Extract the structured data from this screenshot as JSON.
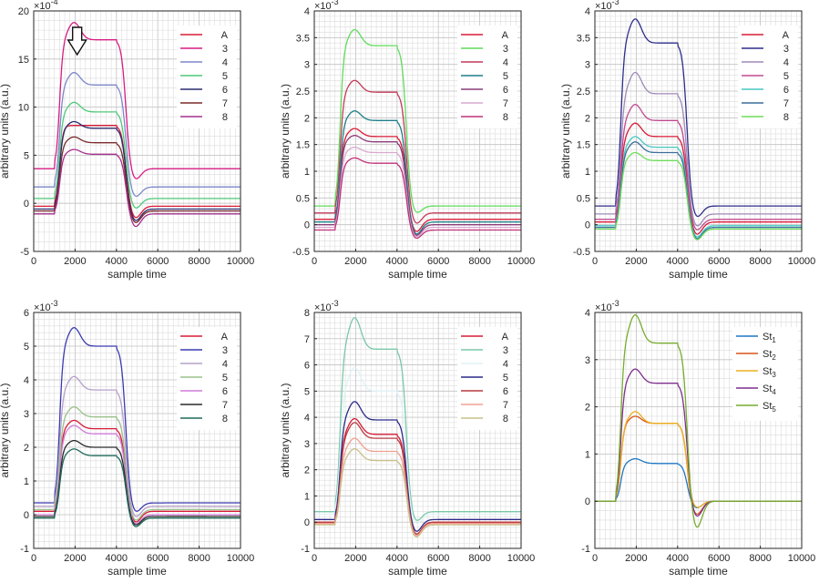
{
  "chart_data": [
    {
      "type": "line",
      "ylabel": "arbitrary units (a.u.)",
      "xlabel": "sample time",
      "exponent": "×10",
      "exponent_power": "-4",
      "xlim": [
        0,
        10000
      ],
      "ylim": [
        -5,
        20
      ],
      "xticks": [
        "0",
        "2000",
        "4000",
        "6000",
        "8000",
        "10000"
      ],
      "yticks": [
        "-5",
        "0",
        "5",
        "10",
        "15",
        "20"
      ],
      "annotation": "down-arrow",
      "legend": [
        "A",
        "3",
        "4",
        "5",
        "6",
        "7",
        "8"
      ],
      "colors": [
        "#d81b36",
        "#d61c83",
        "#7b88c9",
        "#4fc979",
        "#2b2b6e",
        "#7c2a2c",
        "#a4308d"
      ],
      "series": [
        {
          "name": "A",
          "base": -0.3,
          "plateau": 8.1,
          "peak": 0,
          "under": -1.6
        },
        {
          "name": "3",
          "base": 3.6,
          "plateau": 17.0,
          "peak": 1.8,
          "under": 2.4
        },
        {
          "name": "4",
          "base": 1.7,
          "plateau": 12.3,
          "peak": 1.3,
          "under": 0.6
        },
        {
          "name": "5",
          "base": 0.5,
          "plateau": 9.5,
          "peak": 1.0,
          "under": -0.6
        },
        {
          "name": "6",
          "base": -0.6,
          "plateau": 7.8,
          "peak": 0.7,
          "under": -1.9
        },
        {
          "name": "7",
          "base": -0.8,
          "plateau": 6.3,
          "peak": 0.6,
          "under": -2.1
        },
        {
          "name": "8",
          "base": -1.1,
          "plateau": 5.1,
          "peak": 0.5,
          "under": -2.5
        }
      ]
    },
    {
      "type": "line",
      "ylabel": "arbitrary units (a.u.)",
      "xlabel": "sample time",
      "exponent": "×10",
      "exponent_power": "-3",
      "xlim": [
        0,
        10000
      ],
      "ylim": [
        -0.5,
        4
      ],
      "xticks": [
        "0",
        "2000",
        "4000",
        "6000",
        "8000",
        "10000"
      ],
      "yticks": [
        "-0.5",
        "0",
        "0.5",
        "1",
        "1.5",
        "2",
        "2.5",
        "3",
        "3.5",
        "4"
      ],
      "legend": [
        "A",
        "3",
        "4",
        "5",
        "6",
        "7",
        "8"
      ],
      "colors": [
        "#d81b36",
        "#5fdc5a",
        "#c23a5a",
        "#1d7f8a",
        "#8a3b7a",
        "#d9a8d0",
        "#c0307a"
      ],
      "series": [
        {
          "name": "A",
          "base": 0.1,
          "plateau": 1.65,
          "peak": 0.15,
          "under": -0.15
        },
        {
          "name": "3",
          "base": 0.35,
          "plateau": 3.35,
          "peak": 0.3,
          "under": 0.2
        },
        {
          "name": "4",
          "base": 0.22,
          "plateau": 2.48,
          "peak": 0.22,
          "under": 0.0
        },
        {
          "name": "5",
          "base": 0.05,
          "plateau": 1.95,
          "peak": 0.18,
          "under": -0.2
        },
        {
          "name": "6",
          "base": 0.0,
          "plateau": 1.55,
          "peak": 0.12,
          "under": -0.22
        },
        {
          "name": "7",
          "base": -0.05,
          "plateau": 1.35,
          "peak": 0.1,
          "under": -0.24
        },
        {
          "name": "8",
          "base": -0.1,
          "plateau": 1.15,
          "peak": 0.1,
          "under": -0.27
        }
      ]
    },
    {
      "type": "line",
      "ylabel": "arbitrary units (a.u.)",
      "xlabel": "sample time",
      "exponent": "×10",
      "exponent_power": "-3",
      "xlim": [
        0,
        10000
      ],
      "ylim": [
        -0.5,
        4
      ],
      "xticks": [
        "0",
        "2000",
        "4000",
        "6000",
        "8000",
        "10000"
      ],
      "yticks": [
        "-0.5",
        "0",
        "0.5",
        "1",
        "1.5",
        "2",
        "2.5",
        "3",
        "3.5",
        "4"
      ],
      "legend": [
        "A",
        "3",
        "4",
        "5",
        "6",
        "7",
        "8"
      ],
      "colors": [
        "#d81b36",
        "#2d2d8c",
        "#a08ab8",
        "#c04a90",
        "#46c8c0",
        "#3a6f9c",
        "#6edc5a"
      ],
      "series": [
        {
          "name": "A",
          "base": 0.05,
          "plateau": 1.65,
          "peak": 0.25,
          "under": -0.2
        },
        {
          "name": "3",
          "base": 0.35,
          "plateau": 3.4,
          "peak": 0.45,
          "under": 0.12
        },
        {
          "name": "4",
          "base": 0.2,
          "plateau": 2.45,
          "peak": 0.4,
          "under": -0.05
        },
        {
          "name": "5",
          "base": 0.1,
          "plateau": 1.95,
          "peak": 0.3,
          "under": -0.12
        },
        {
          "name": "6",
          "base": -0.02,
          "plateau": 1.45,
          "peak": 0.2,
          "under": -0.25
        },
        {
          "name": "7",
          "base": -0.05,
          "plateau": 1.35,
          "peak": 0.2,
          "under": -0.28
        },
        {
          "name": "8",
          "base": -0.08,
          "plateau": 1.2,
          "peak": 0.15,
          "under": -0.3
        }
      ]
    },
    {
      "type": "line",
      "ylabel": "arbitrary units (a.u.)",
      "xlabel": "sample time",
      "exponent": "×10",
      "exponent_power": "-3",
      "xlim": [
        0,
        10000
      ],
      "ylim": [
        -1,
        6
      ],
      "xticks": [
        "0",
        "2000",
        "4000",
        "6000",
        "8000",
        "10000"
      ],
      "yticks": [
        "-1",
        "0",
        "1",
        "2",
        "3",
        "4",
        "5",
        "6"
      ],
      "legend": [
        "A",
        "3",
        "4",
        "5",
        "6",
        "7",
        "8"
      ],
      "colors": [
        "#d81b36",
        "#3b3bb0",
        "#b5a0c8",
        "#9ac08a",
        "#d07ad8",
        "#2a2a2a",
        "#1d6b5a"
      ],
      "series": [
        {
          "name": "A",
          "base": 0.1,
          "plateau": 2.55,
          "peak": 0.25,
          "under": -0.25
        },
        {
          "name": "3",
          "base": 0.35,
          "plateau": 5.0,
          "peak": 0.55,
          "under": 0.05
        },
        {
          "name": "4",
          "base": 0.25,
          "plateau": 3.7,
          "peak": 0.4,
          "under": -0.1
        },
        {
          "name": "5",
          "base": 0.15,
          "plateau": 2.9,
          "peak": 0.3,
          "under": -0.2
        },
        {
          "name": "6",
          "base": 0.0,
          "plateau": 2.4,
          "peak": 0.25,
          "under": -0.3
        },
        {
          "name": "7",
          "base": -0.05,
          "plateau": 2.0,
          "peak": 0.2,
          "under": -0.33
        },
        {
          "name": "8",
          "base": -0.1,
          "plateau": 1.75,
          "peak": 0.2,
          "under": -0.38
        }
      ]
    },
    {
      "type": "line",
      "ylabel": "arbitrary units (a.u.)",
      "xlabel": "sample time",
      "exponent": "×10",
      "exponent_power": "-3",
      "xlim": [
        0,
        10000
      ],
      "ylim": [
        -1,
        8
      ],
      "xticks": [
        "0",
        "2000",
        "4000",
        "6000",
        "8000",
        "10000"
      ],
      "yticks": [
        "-1",
        "0",
        "1",
        "2",
        "3",
        "4",
        "5",
        "6",
        "7",
        "8"
      ],
      "legend": [
        "A",
        "3",
        "4",
        "5",
        "6",
        "7",
        "8"
      ],
      "colors": [
        "#d81b36",
        "#7ac8a8",
        "#dff2f8",
        "#2a2a8a",
        "#b83a40",
        "#f0a090",
        "#c8c08a"
      ],
      "series": [
        {
          "name": "A",
          "base": 0.0,
          "plateau": 3.35,
          "peak": 0.6,
          "under": -0.5
        },
        {
          "name": "3",
          "base": 0.4,
          "plateau": 6.6,
          "peak": 1.2,
          "under": 0.0
        },
        {
          "name": "4",
          "base": 0.3,
          "plateau": 5.0,
          "peak": 0.9,
          "under": -0.1
        },
        {
          "name": "5",
          "base": 0.1,
          "plateau": 3.9,
          "peak": 0.7,
          "under": -0.4
        },
        {
          "name": "6",
          "base": 0.0,
          "plateau": 3.2,
          "peak": 0.6,
          "under": -0.5
        },
        {
          "name": "7",
          "base": -0.05,
          "plateau": 2.7,
          "peak": 0.5,
          "under": -0.55
        },
        {
          "name": "8",
          "base": -0.1,
          "plateau": 2.35,
          "peak": 0.45,
          "under": -0.6
        }
      ]
    },
    {
      "type": "line",
      "ylabel": "",
      "xlabel": "sample time",
      "exponent": "×10",
      "exponent_power": "-3",
      "xlim": [
        0,
        10000
      ],
      "ylim": [
        -1,
        4
      ],
      "xticks": [
        "0",
        "2000",
        "4000",
        "6000",
        "8000",
        "10000"
      ],
      "yticks": [
        "-1",
        "0",
        "1",
        "2",
        "3",
        "4"
      ],
      "legend": [
        "St",
        "St",
        "St",
        "St",
        "St"
      ],
      "legend_subscripts": [
        "1",
        "2",
        "3",
        "4",
        "5"
      ],
      "colors": [
        "#1f77c4",
        "#d9541a",
        "#edb120",
        "#7e2f8e",
        "#77ac30"
      ],
      "series": [
        {
          "name": "St1",
          "base": 0.0,
          "plateau": 0.8,
          "peak": 0.1,
          "under": -0.15
        },
        {
          "name": "St2",
          "base": 0.0,
          "plateau": 1.65,
          "peak": 0.15,
          "under": -0.3
        },
        {
          "name": "St3",
          "base": 0.0,
          "plateau": 1.65,
          "peak": 0.25,
          "under": -0.15
        },
        {
          "name": "St4",
          "base": 0.0,
          "plateau": 2.5,
          "peak": 0.3,
          "under": -0.35
        },
        {
          "name": "St5",
          "base": 0.0,
          "plateau": 3.35,
          "peak": 0.6,
          "under": -0.6
        }
      ]
    }
  ]
}
